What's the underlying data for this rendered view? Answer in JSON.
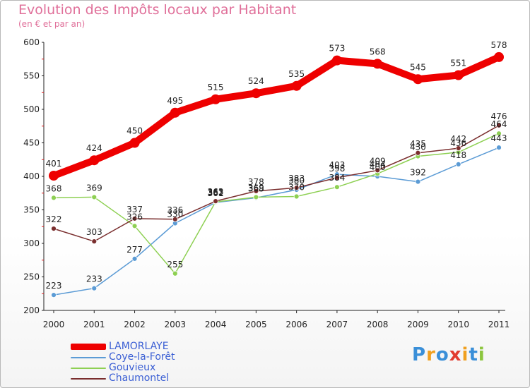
{
  "header": {
    "title": "Evolution des Impôts locaux par Habitant",
    "subtitle": "(en € et par an)"
  },
  "logo": {
    "text": "Proxiti",
    "letters": [
      "P",
      "r",
      "o",
      "x",
      "i",
      "t",
      "i"
    ],
    "letter_colors": [
      "#3a8fd8",
      "#f0a020",
      "#3a8fd8",
      "#e23b2e",
      "#f0a020",
      "#3a8fd8",
      "#8cc63e"
    ]
  },
  "chart_data": {
    "type": "line",
    "title": "Evolution des Impôts locaux par Habitant",
    "subtitle": "(en € et par an)",
    "xlabel": "",
    "ylabel": "",
    "x": [
      "2000",
      "2001",
      "2002",
      "2003",
      "2004",
      "2005",
      "2006",
      "2007",
      "2008",
      "2009",
      "2010",
      "2011"
    ],
    "ylim": [
      200,
      600
    ],
    "yticks": [
      200,
      250,
      300,
      350,
      400,
      450,
      500,
      550,
      600
    ],
    "grid": false,
    "legend_position": "bottom-left",
    "series": [
      {
        "name": "LAMORLAYE",
        "color": "#ee0000",
        "values": [
          401,
          424,
          450,
          495,
          515,
          524,
          535,
          573,
          568,
          545,
          551,
          578
        ],
        "labels": [
          "401",
          "424",
          "450",
          "495",
          "515",
          "524",
          "535",
          "573",
          "568",
          "545",
          "551",
          "578"
        ]
      },
      {
        "name": "Coye-la-Forêt",
        "color": "#5b9bd5",
        "values": [
          223,
          233,
          277,
          330,
          361,
          368,
          380,
          403,
          400,
          392,
          418,
          443
        ],
        "labels": [
          "223",
          "233",
          "277",
          "330",
          "361",
          "368",
          "380",
          "403",
          "400",
          "392",
          "418",
          "443"
        ]
      },
      {
        "name": "Gouvieux",
        "color": "#8ed053",
        "values": [
          368,
          369,
          326,
          255,
          362,
          369,
          370,
          384,
          404,
          430,
          436,
          464
        ],
        "labels": [
          "368",
          "369",
          "326",
          "255",
          "362",
          "369",
          "370",
          "384",
          "404",
          "430",
          "436",
          "464"
        ]
      },
      {
        "name": "Chaumontel",
        "color": "#7a2e2e",
        "values": [
          322,
          303,
          337,
          336,
          363,
          378,
          383,
          398,
          409,
          435,
          442,
          476
        ],
        "labels": [
          "322",
          "303",
          "337",
          "336",
          "363",
          "378",
          "383",
          "398",
          "409",
          "435",
          "442",
          "476"
        ]
      }
    ]
  },
  "colors": {
    "title": "#e0709a",
    "axis": "#222222",
    "tick_marks": "#e31a1c"
  }
}
